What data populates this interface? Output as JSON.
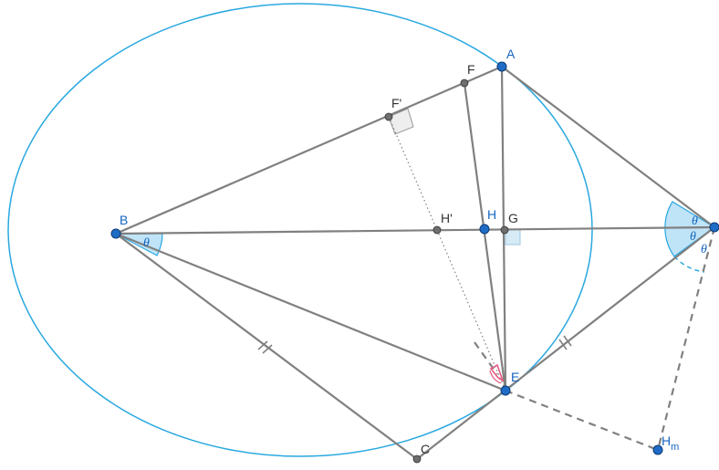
{
  "figure": {
    "points": {
      "A": "A",
      "B": "B",
      "C": "C",
      "E": "E",
      "F": "F",
      "F_prime": "F'",
      "G": "G",
      "H": "H",
      "H_prime": "H'",
      "H_m_main": "H",
      "H_m_sub": "m"
    },
    "angle_label": "θ",
    "colors": {
      "ellipse": "#29a8e0",
      "segment": "#808080",
      "main_point": "#1f6cc7",
      "aux_point": "#6e6e6e",
      "angle_fill": "#bfe3f7",
      "angle_marker": "#e6547c",
      "label_blue": "#1565c0"
    }
  }
}
